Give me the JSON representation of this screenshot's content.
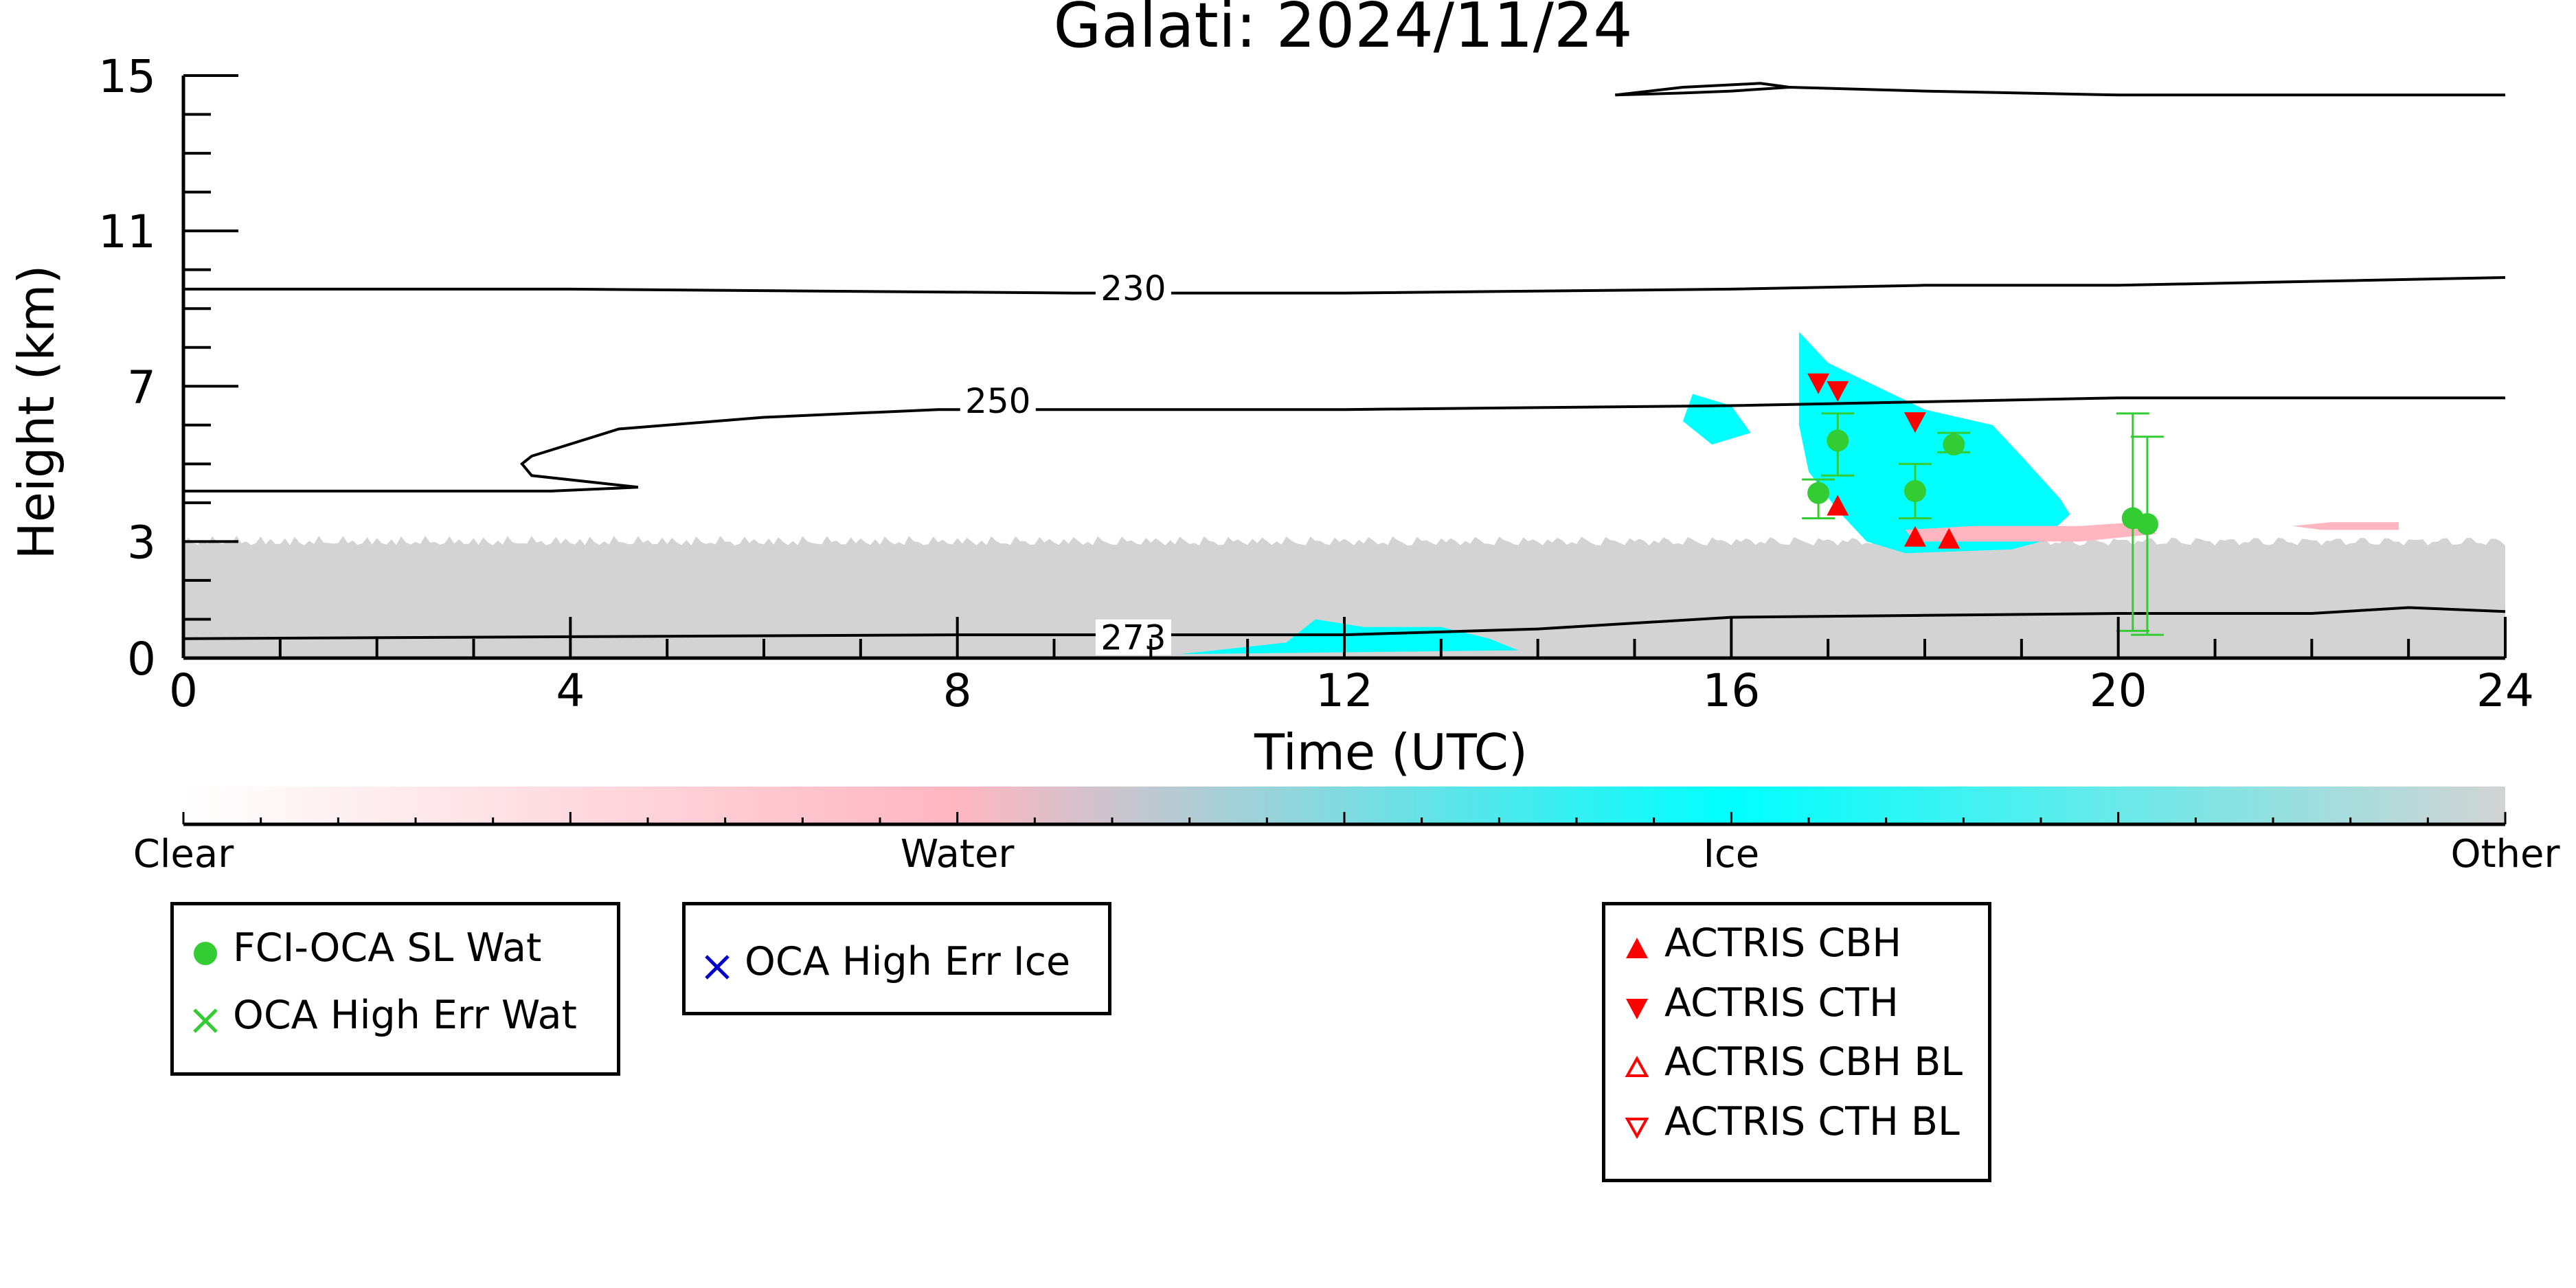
{
  "chart_data": {
    "type": "heatmap",
    "title": "Galati: 2024/11/24",
    "xlabel": "Time (UTC)",
    "ylabel": "Height (km)",
    "xlim": [
      0,
      24
    ],
    "ylim": [
      0,
      15
    ],
    "x_ticks": [
      0,
      4,
      8,
      12,
      16,
      20,
      24
    ],
    "y_ticks": [
      0,
      3,
      7,
      11,
      15
    ],
    "classes": [
      {
        "name": "Clear",
        "color": "#ffffff"
      },
      {
        "name": "Water",
        "color": "#ffb6c1"
      },
      {
        "name": "Ice",
        "color": "#00ffff"
      },
      {
        "name": "Other",
        "color": "#d3d3d3"
      }
    ],
    "regions": [
      {
        "class": "Other",
        "x": [
          0,
          24
        ],
        "y": [
          0,
          2.9
        ],
        "note": "boundary layer aerosol/other"
      },
      {
        "class": "Ice",
        "polygon": [
          [
            16.7,
            8.4
          ],
          [
            17.0,
            7.6
          ],
          [
            18.0,
            6.4
          ],
          [
            18.7,
            6.0
          ],
          [
            19.0,
            5.2
          ],
          [
            19.4,
            4.1
          ],
          [
            19.5,
            3.7
          ],
          [
            19.2,
            3.0
          ],
          [
            18.9,
            2.8
          ],
          [
            17.8,
            2.7
          ],
          [
            17.4,
            3.0
          ],
          [
            17.1,
            3.8
          ],
          [
            16.8,
            4.8
          ],
          [
            16.7,
            6.0
          ]
        ]
      },
      {
        "class": "Ice",
        "polygon": [
          [
            15.6,
            6.8
          ],
          [
            16.0,
            6.5
          ],
          [
            16.2,
            5.8
          ],
          [
            15.8,
            5.5
          ],
          [
            15.5,
            6.1
          ]
        ]
      },
      {
        "class": "Ice",
        "polygon": [
          [
            10.3,
            0.1
          ],
          [
            11.4,
            0.4
          ],
          [
            11.7,
            1.0
          ],
          [
            12.2,
            0.8
          ],
          [
            13.0,
            0.8
          ],
          [
            13.5,
            0.5
          ],
          [
            13.8,
            0.2
          ],
          [
            10.3,
            0.1
          ]
        ]
      },
      {
        "class": "Water",
        "polygon": [
          [
            17.8,
            3.3
          ],
          [
            18.5,
            3.4
          ],
          [
            19.6,
            3.4
          ],
          [
            20.2,
            3.5
          ],
          [
            20.4,
            3.2
          ],
          [
            19.6,
            3.0
          ],
          [
            18.6,
            3.0
          ],
          [
            17.9,
            3.0
          ]
        ]
      },
      {
        "class": "Water",
        "polygon": [
          [
            21.8,
            3.4
          ],
          [
            22.2,
            3.5
          ],
          [
            22.9,
            3.5
          ],
          [
            22.9,
            3.3
          ],
          [
            22.1,
            3.3
          ]
        ]
      }
    ],
    "temperature_contours": [
      {
        "label": "273",
        "label_at": [
          9.5,
          0.5
        ],
        "points": [
          [
            0,
            0.5
          ],
          [
            4,
            0.55
          ],
          [
            8,
            0.6
          ],
          [
            9.2,
            0.6
          ],
          [
            12,
            0.6
          ],
          [
            14,
            0.75
          ],
          [
            16,
            1.05
          ],
          [
            18,
            1.1
          ],
          [
            20,
            1.15
          ],
          [
            22,
            1.15
          ],
          [
            23,
            1.3
          ],
          [
            24,
            1.2
          ]
        ]
      },
      {
        "label": "250",
        "label_at": [
          8.1,
          6.6
        ],
        "points": [
          [
            0,
            4.3
          ],
          [
            2,
            4.3
          ],
          [
            3.8,
            4.3
          ],
          [
            4.7,
            4.4
          ],
          [
            3.6,
            4.7
          ],
          [
            3.5,
            5.0
          ],
          [
            3.6,
            5.2
          ],
          [
            4.5,
            5.9
          ],
          [
            6,
            6.2
          ],
          [
            7.8,
            6.4
          ],
          [
            10,
            6.4
          ],
          [
            12,
            6.4
          ],
          [
            16,
            6.5
          ],
          [
            18,
            6.6
          ],
          [
            20,
            6.7
          ],
          [
            22,
            6.7
          ],
          [
            24,
            6.7
          ]
        ]
      },
      {
        "label": "230",
        "label_at": [
          9.5,
          9.5
        ],
        "points": [
          [
            0,
            9.5
          ],
          [
            4,
            9.5
          ],
          [
            9.2,
            9.4
          ],
          [
            12,
            9.4
          ],
          [
            16,
            9.5
          ],
          [
            18,
            9.6
          ],
          [
            20,
            9.6
          ],
          [
            22,
            9.7
          ],
          [
            24,
            9.8
          ]
        ]
      },
      {
        "label": "",
        "points": [
          [
            14.8,
            14.5
          ],
          [
            15.5,
            14.55
          ],
          [
            16,
            14.6
          ],
          [
            16.6,
            14.7
          ],
          [
            18,
            14.6
          ],
          [
            20,
            14.5
          ],
          [
            24,
            14.5
          ]
        ]
      },
      {
        "label": "",
        "points": [
          [
            14.8,
            14.5
          ],
          [
            15.5,
            14.7
          ],
          [
            16.3,
            14.8
          ],
          [
            16.6,
            14.7
          ]
        ]
      }
    ],
    "series": [
      {
        "name": "FCI-OCA SL Wat",
        "marker": "circle",
        "color": "#33cc33",
        "points": [
          {
            "x": 16.9,
            "y": 4.25,
            "err": [
              3.6,
              4.6
            ]
          },
          {
            "x": 17.1,
            "y": 5.6,
            "err": [
              4.7,
              6.3
            ]
          },
          {
            "x": 17.9,
            "y": 4.3,
            "err": [
              3.6,
              5.0
            ]
          },
          {
            "x": 18.3,
            "y": 5.5,
            "err": [
              5.3,
              5.8
            ]
          },
          {
            "x": 20.15,
            "y": 3.6,
            "err": [
              0.7,
              6.3
            ]
          },
          {
            "x": 20.3,
            "y": 3.45,
            "err": [
              0.6,
              5.7
            ]
          }
        ]
      },
      {
        "name": "OCA High Err Wat",
        "marker": "x",
        "color": "#33cc33",
        "points": []
      },
      {
        "name": "OCA High Err Ice",
        "marker": "x",
        "color": "#0000cc",
        "points": []
      },
      {
        "name": "ACTRIS CBH",
        "marker": "triangle-up",
        "color": "#ff0000",
        "points": [
          {
            "x": 17.1,
            "y": 3.9
          },
          {
            "x": 17.9,
            "y": 3.1
          },
          {
            "x": 18.25,
            "y": 3.05
          }
        ]
      },
      {
        "name": "ACTRIS CTH",
        "marker": "triangle-down",
        "color": "#ff0000",
        "points": [
          {
            "x": 16.9,
            "y": 7.1
          },
          {
            "x": 17.1,
            "y": 6.9
          },
          {
            "x": 17.9,
            "y": 6.1
          }
        ]
      },
      {
        "name": "ACTRIS CBH BL",
        "marker": "triangle-up-open",
        "color": "#ff0000",
        "points": []
      },
      {
        "name": "ACTRIS CTH BL",
        "marker": "triangle-down-open",
        "color": "#ff0000",
        "points": []
      }
    ],
    "colorbar": {
      "labels": [
        "Clear",
        "Water",
        "Ice",
        "Other"
      ]
    },
    "legend_groups": [
      [
        "FCI-OCA SL Wat",
        "OCA High Err Wat"
      ],
      [
        "OCA High Err Ice"
      ],
      [
        "ACTRIS CBH",
        "ACTRIS CTH",
        "ACTRIS CBH BL",
        "ACTRIS CTH BL"
      ]
    ]
  }
}
